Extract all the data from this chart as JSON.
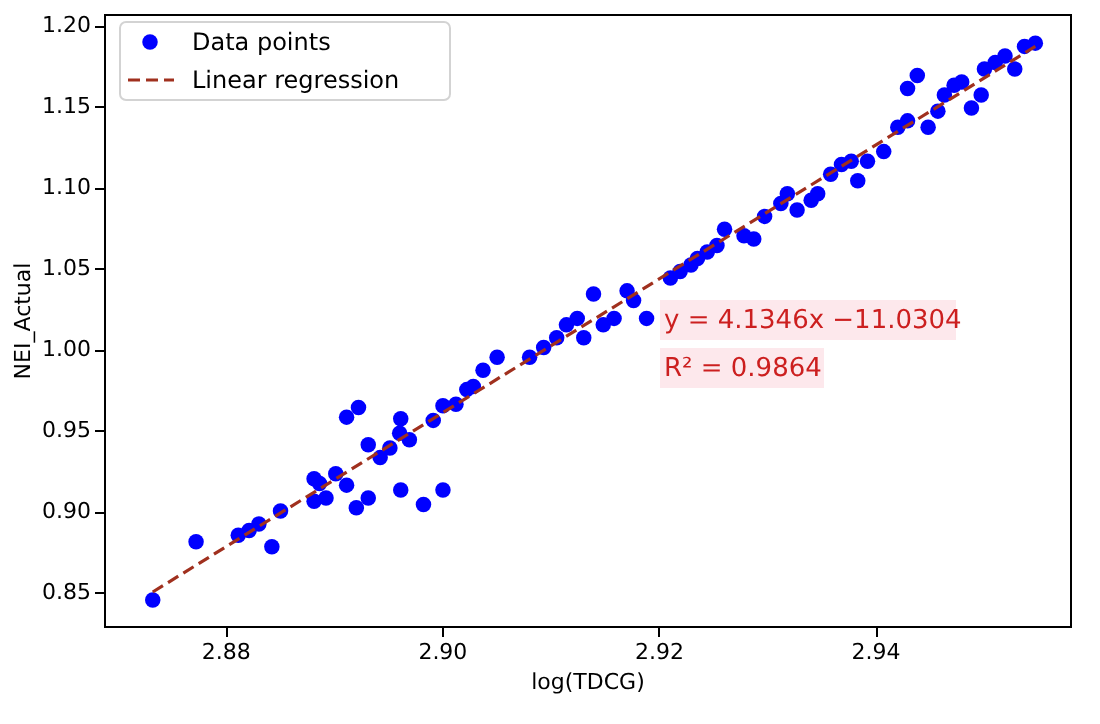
{
  "chart_data": {
    "type": "scatter",
    "xlabel": "log(TDCG)",
    "ylabel": "NEI_Actual",
    "xlim": [
      2.8688,
      2.958
    ],
    "ylim": [
      0.829,
      1.207
    ],
    "xticks": [
      2.88,
      {
        "value": 2.9,
        "label": "2.90"
      },
      2.92,
      2.94
    ],
    "yticks": [
      0.85,
      {
        "value": 0.9,
        "label": "0.90"
      },
      0.95,
      {
        "value": 1,
        "label": "1.00"
      },
      1.05,
      {
        "value": 1.1,
        "label": "1.10"
      },
      1.15,
      {
        "value": 1.2,
        "label": "1.20"
      }
    ],
    "legend": "top left",
    "series": [
      {
        "name": "Data points",
        "marker": "circle",
        "color": "#0000ff",
        "x": [
          2.8733,
          2.8773,
          2.8812,
          2.8822,
          2.8831,
          2.8843,
          2.8851,
          2.8882,
          2.8882,
          2.8887,
          2.8893,
          2.8902,
          2.8912,
          2.8923,
          2.8912,
          2.8921,
          2.8932,
          2.8932,
          2.8943,
          2.8952,
          2.8962,
          2.8962,
          2.8961,
          2.897,
          2.8983,
          2.8992,
          2.9001,
          2.9001,
          2.9013,
          2.9029,
          2.9023,
          2.9038,
          2.9051,
          2.9081,
          2.9094,
          2.9106,
          2.9115,
          2.9125,
          2.9131,
          2.914,
          2.9149,
          2.9159,
          2.9171,
          2.9177,
          2.9189,
          2.9211,
          2.922,
          2.923,
          2.9236,
          2.9245,
          2.9254,
          2.9261,
          2.9279,
          2.9288,
          2.9298,
          2.9313,
          2.9319,
          2.9328,
          2.9341,
          2.9347,
          2.9359,
          2.9369,
          2.9378,
          2.9384,
          2.9393,
          2.9408,
          2.9421,
          2.943,
          2.943,
          2.9439,
          2.9449,
          2.9458,
          2.9464,
          2.9473,
          2.948,
          2.9489,
          2.9498,
          2.9501,
          2.9511,
          2.952,
          2.9529,
          2.9538,
          2.9548
        ],
        "values": [
          0.845,
          0.881,
          0.885,
          0.888,
          0.892,
          0.878,
          0.9,
          0.906,
          0.92,
          0.917,
          0.908,
          0.923,
          0.958,
          0.964,
          0.916,
          0.902,
          0.908,
          0.941,
          0.933,
          0.939,
          0.957,
          0.913,
          0.948,
          0.944,
          0.904,
          0.956,
          0.913,
          0.965,
          0.966,
          0.977,
          0.975,
          0.987,
          0.995,
          0.995,
          1.001,
          1.007,
          1.015,
          1.019,
          1.007,
          1.034,
          1.015,
          1.019,
          1.036,
          1.03,
          1.019,
          1.044,
          1.048,
          1.052,
          1.056,
          1.06,
          1.064,
          1.074,
          1.07,
          1.068,
          1.082,
          1.09,
          1.096,
          1.086,
          1.092,
          1.096,
          1.108,
          1.114,
          1.116,
          1.104,
          1.116,
          1.122,
          1.137,
          1.141,
          1.161,
          1.169,
          1.137,
          1.147,
          1.157,
          1.163,
          1.165,
          1.149,
          1.157,
          1.173,
          1.177,
          1.181,
          1.173,
          1.187,
          1.189
        ]
      },
      {
        "name": "Linear regression",
        "type": "line",
        "marker": "none",
        "color": "#a0301e",
        "line_style": "dashed",
        "x": [
          2.8733,
          2.9548
        ],
        "values": [
          0.85,
          1.187
        ]
      }
    ],
    "annotations": [
      "y = 4.1346x −11.0304",
      "R² = 0.9864"
    ]
  }
}
